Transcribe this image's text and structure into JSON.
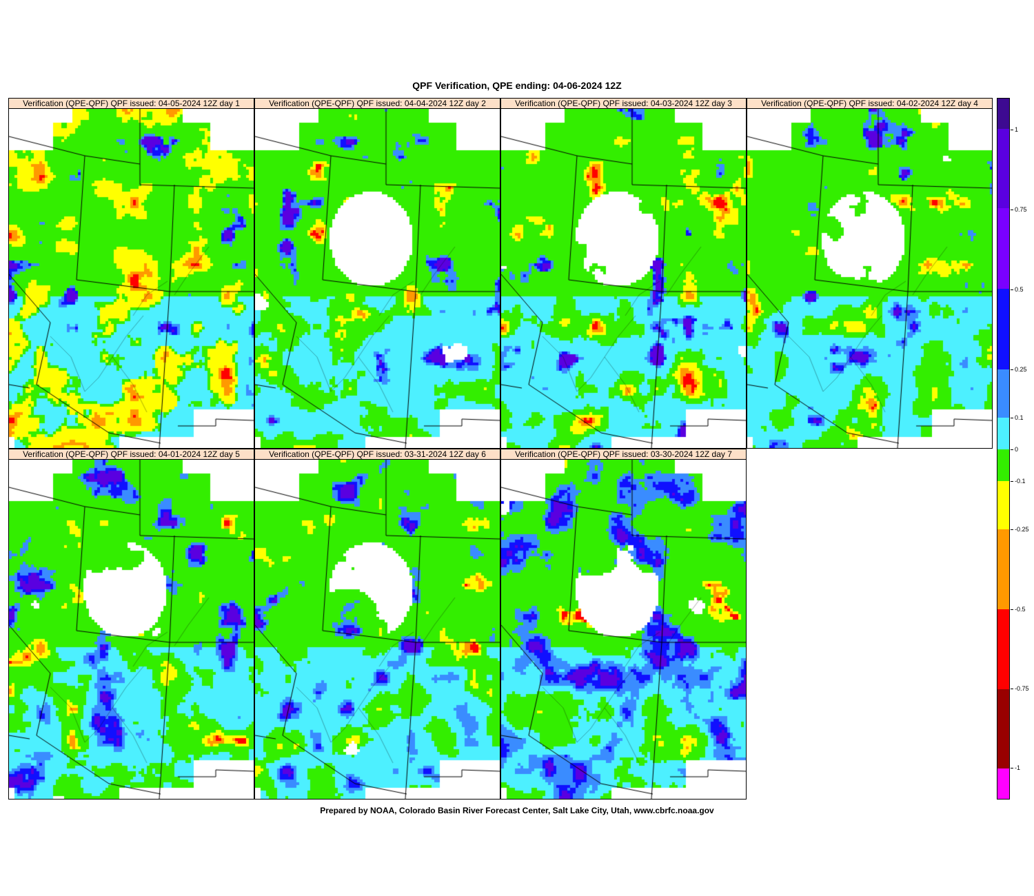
{
  "title": "QPF Verification, QPE ending: 04-06-2024 12Z",
  "panels": [
    {
      "header": "Verification (QPE-QPF)  QPF issued: 04-05-2024 12Z day 1",
      "day": 1,
      "pattern": {
        "seed": 11,
        "negative_bias": 0.38,
        "positive_bias": 0.12,
        "coverage": 0.92
      }
    },
    {
      "header": "Verification (QPE-QPF)  QPF issued: 04-04-2024 12Z day 2",
      "day": 2,
      "pattern": {
        "seed": 23,
        "negative_bias": 0.18,
        "positive_bias": 0.14,
        "coverage": 0.78
      }
    },
    {
      "header": "Verification (QPE-QPF)  QPF issued: 04-03-2024 12Z day 3",
      "day": 3,
      "pattern": {
        "seed": 37,
        "negative_bias": 0.22,
        "positive_bias": 0.12,
        "coverage": 0.78
      }
    },
    {
      "header": "Verification (QPE-QPF)  QPF issued: 04-02-2024 12Z day 4",
      "day": 4,
      "pattern": {
        "seed": 41,
        "negative_bias": 0.2,
        "positive_bias": 0.16,
        "coverage": 0.8
      }
    },
    {
      "header": "Verification (QPE-QPF)  QPF issued: 04-01-2024 12Z day 5",
      "day": 5,
      "pattern": {
        "seed": 53,
        "negative_bias": 0.18,
        "positive_bias": 0.22,
        "coverage": 0.8
      }
    },
    {
      "header": "Verification (QPE-QPF)  QPF issued: 03-31-2024 12Z day 6",
      "day": 6,
      "pattern": {
        "seed": 67,
        "negative_bias": 0.2,
        "positive_bias": 0.22,
        "coverage": 0.8
      }
    },
    {
      "header": "Verification (QPE-QPF)  QPF issued: 03-30-2024 12Z day 7",
      "day": 7,
      "pattern": {
        "seed": 79,
        "negative_bias": 0.12,
        "positive_bias": 0.3,
        "coverage": 0.8
      }
    }
  ],
  "legend": {
    "labels": [
      "1",
      "0.75",
      "0.5",
      "0.25",
      "0.1",
      "0",
      "-0.1",
      "-0.25",
      "-0.5",
      "-0.75",
      "-1"
    ],
    "color_bins": [
      {
        "color": "#3d0a91"
      },
      {
        "color": "#5a00e0"
      },
      {
        "color": "#7a00ff"
      },
      {
        "color": "#1010ff"
      },
      {
        "color": "#3a8cff"
      },
      {
        "color": "#4df0ff"
      },
      {
        "color": "#33ee00"
      },
      {
        "color": "#ffff00"
      },
      {
        "color": "#ff9900"
      },
      {
        "color": "#ff0000"
      },
      {
        "color": "#990000"
      },
      {
        "color": "#ff00ff"
      }
    ]
  },
  "footer": "Prepared by NOAA, Colorado Basin River Forecast Center, Salt Lake City, Utah, www.cbrfc.noaa.gov"
}
